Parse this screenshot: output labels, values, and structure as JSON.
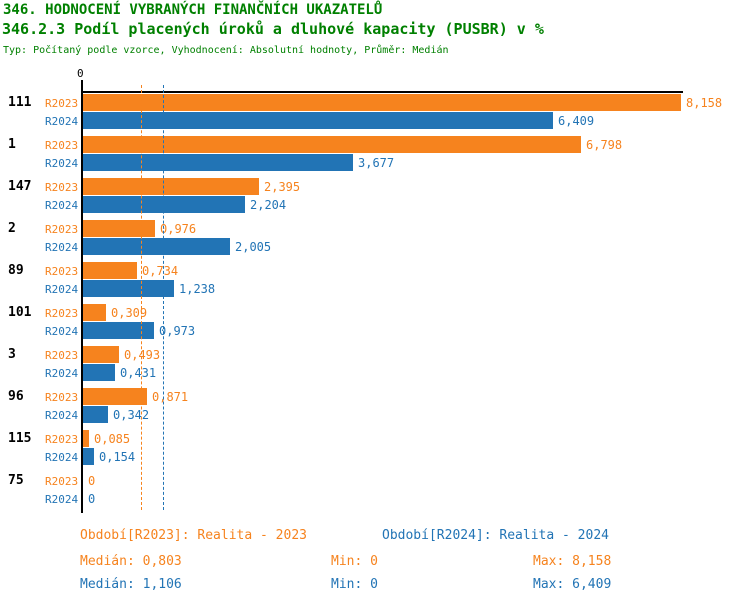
{
  "header": {
    "title1": "346. HODNOCENÍ VYBRANÝCH FINANČNÍCH UKAZATELŮ",
    "title2": "346.2.3 Podíl placených úroků a dluhové kapacity (PUSBR) v %",
    "title3": "Typ: Počítaný podle vzorce, Vyhodnocení: Absolutní hodnoty, Průměr: Medián"
  },
  "colors": {
    "title": "#008000",
    "r2023": "#F6831E",
    "r2024": "#2274B5",
    "axis": "#000000"
  },
  "chart_data": {
    "type": "bar",
    "orientation": "horizontal",
    "title": "346.2.3 Podíl placených úroků a dluhové kapacity (PUSBR) v %",
    "xlabel": "",
    "ylabel": "",
    "xlim": [
      0,
      8.8
    ],
    "grid": "two dashed vertical median reference lines",
    "legend_position": "bottom",
    "zero_tick_label": "0",
    "categories": [
      "111",
      "1",
      "147",
      "2",
      "89",
      "101",
      "3",
      "96",
      "115",
      "75"
    ],
    "series": [
      {
        "name": "R2023",
        "color_key": "r2023",
        "values": [
          8.158,
          6.798,
          2.395,
          0.976,
          0.734,
          0.309,
          0.493,
          0.871,
          0.085,
          0
        ],
        "labels": [
          "8,158",
          "6,798",
          "2,395",
          "0,976",
          "0,734",
          "0,309",
          "0,493",
          "0,871",
          "0,085",
          "0"
        ]
      },
      {
        "name": "R2024",
        "color_key": "r2024",
        "values": [
          6.409,
          3.677,
          2.204,
          2.005,
          1.238,
          0.973,
          0.431,
          0.342,
          0.154,
          0
        ],
        "labels": [
          "6,409",
          "3,677",
          "2,204",
          "2,005",
          "1,238",
          "0,973",
          "0,431",
          "0,342",
          "0,154",
          "0"
        ]
      }
    ],
    "reference_lines": [
      {
        "name": "median-r2023",
        "value": 0.803,
        "color_key": "r2023"
      },
      {
        "name": "median-r2024",
        "value": 1.106,
        "color_key": "r2024"
      }
    ]
  },
  "legend": {
    "period_r2023": "Období[R2023]: Realita - 2023",
    "period_r2024": "Období[R2024]: Realita - 2024",
    "stats_r2023": {
      "median": "Medián: 0,803",
      "min": "Min: 0",
      "max": "Max: 8,158"
    },
    "stats_r2024": {
      "median": "Medián: 1,106",
      "min": "Min: 0",
      "max": "Max: 6,409"
    }
  }
}
